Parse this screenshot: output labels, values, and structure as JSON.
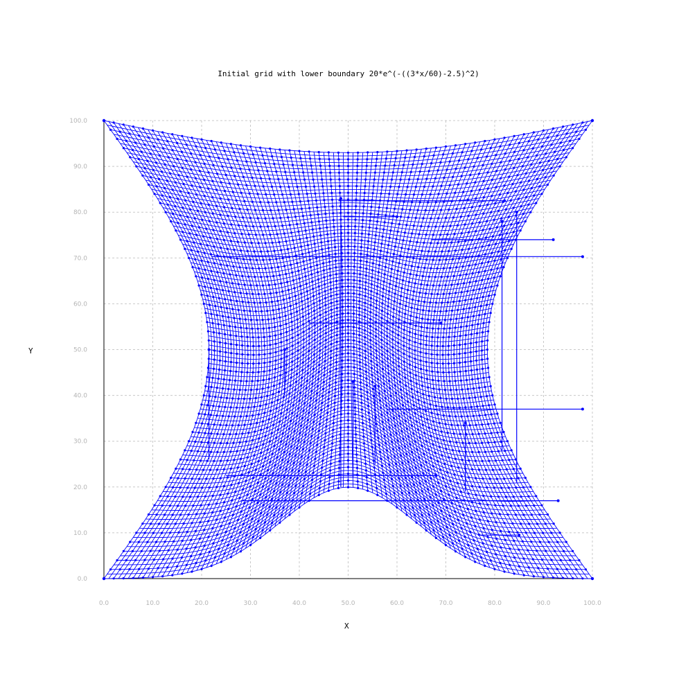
{
  "chart_data": {
    "type": "scatter",
    "title": "Initial grid with lower boundary 20*e^(-((3*x/60)-2.5)^2)",
    "xlabel": "X",
    "ylabel": "Y",
    "xlim": [
      0,
      100
    ],
    "ylim": [
      0,
      100
    ],
    "grid": true,
    "x_ticks": [
      "0.0",
      "10.0",
      "20.0",
      "30.0",
      "40.0",
      "50.0",
      "60.0",
      "70.0",
      "80.0",
      "90.0",
      "100.0"
    ],
    "y_ticks": [
      "0.0",
      "10.0",
      "20.0",
      "30.0",
      "40.0",
      "50.0",
      "60.0",
      "70.0",
      "80.0",
      "90.0",
      "100.0"
    ],
    "series_color": "#0000ff",
    "grid_lines_x": 101,
    "grid_lines_y": 101,
    "boundaries": {
      "left": "x = 20*e^(-((3*(100-y)/60)-2.5)^2) ... left edge curving from (0,0) to (0,100), bulging right to ~x=21.5 at y=50",
      "corners": [
        [
          0,
          0
        ],
        [
          100,
          0
        ],
        [
          100,
          100
        ],
        [
          0,
          100
        ]
      ],
      "lower_peak": [
        50,
        20
      ],
      "upper_dip": [
        50,
        93
      ],
      "left_bulge": [
        21.5,
        50
      ],
      "right_bulge": [
        78.5,
        50
      ]
    },
    "stray_segments": [
      {
        "x": [
          21.5,
          21.5
        ],
        "y": [
          26,
          50
        ]
      },
      {
        "x": [
          22,
          98
        ],
        "y": [
          70.3,
          70.3
        ]
      },
      {
        "x": [
          48,
          82
        ],
        "y": [
          82.5,
          82.5
        ]
      },
      {
        "x": [
          49,
          60
        ],
        "y": [
          79,
          79
        ]
      },
      {
        "x": [
          67,
          92
        ],
        "y": [
          74,
          74
        ]
      },
      {
        "x": [
          42,
          69
        ],
        "y": [
          55.8,
          55.8
        ]
      },
      {
        "x": [
          58,
          98
        ],
        "y": [
          37,
          37
        ]
      },
      {
        "x": [
          25,
          68
        ],
        "y": [
          22.5,
          22.5
        ]
      },
      {
        "x": [
          28,
          93
        ],
        "y": [
          17,
          17
        ]
      },
      {
        "x": [
          77,
          85
        ],
        "y": [
          9.5,
          9.5
        ]
      },
      {
        "x": [
          48.5,
          48.5
        ],
        "y": [
          20,
          83
        ]
      },
      {
        "x": [
          81.5,
          81.5
        ],
        "y": [
          28,
          78
        ]
      },
      {
        "x": [
          84.5,
          84.5
        ],
        "y": [
          21,
          80
        ]
      },
      {
        "x": [
          74,
          74
        ],
        "y": [
          19,
          34
        ]
      },
      {
        "x": [
          37,
          37
        ],
        "y": [
          40,
          50
        ]
      },
      {
        "x": [
          51,
          51
        ],
        "y": [
          22,
          43
        ]
      },
      {
        "x": [
          55.5,
          55.5
        ],
        "y": [
          25,
          42
        ]
      }
    ]
  }
}
